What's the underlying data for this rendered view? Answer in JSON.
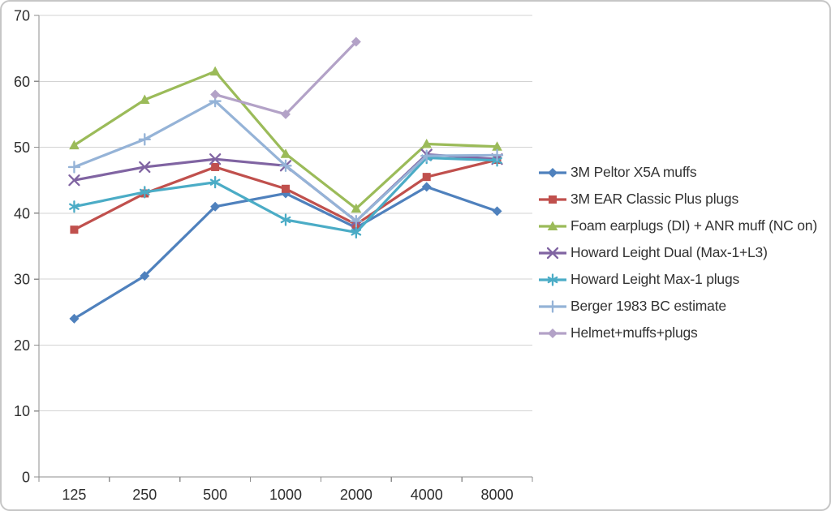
{
  "chart_data": {
    "type": "line",
    "title": "",
    "xlabel": "",
    "ylabel": "",
    "categories": [
      "125",
      "250",
      "500",
      "1000",
      "2000",
      "4000",
      "8000"
    ],
    "y_axis": {
      "min": 0,
      "max": 70,
      "step": 10,
      "tick_labels": [
        "0",
        "10",
        "20",
        "30",
        "40",
        "50",
        "60",
        "70"
      ]
    },
    "grid": true,
    "legend_position": "right",
    "series": [
      {
        "name": "3M Peltor X5A muffs",
        "color": "#4F81BD",
        "marker": "diamond",
        "values": [
          24,
          30.5,
          41,
          43,
          37.8,
          44,
          40.3
        ]
      },
      {
        "name": "3M EAR Classic Plus plugs",
        "color": "#C0504D",
        "marker": "square",
        "values": [
          37.5,
          43,
          47,
          43.7,
          38.3,
          45.5,
          48.1
        ]
      },
      {
        "name": "Foam earplugs (DI) + ANR muff (NC on)",
        "color": "#9BBB59",
        "marker": "triangle",
        "values": [
          50.3,
          57.2,
          61.5,
          49,
          40.7,
          50.5,
          50.1
        ]
      },
      {
        "name": "Howard Leight Dual (Max-1+L3)",
        "color": "#8064A2",
        "marker": "x",
        "values": [
          45,
          47,
          48.2,
          47.2,
          38.8,
          48.9,
          48.2
        ]
      },
      {
        "name": "Howard Leight Max-1 plugs",
        "color": "#4BACC6",
        "marker": "asterisk",
        "values": [
          41,
          43.2,
          44.7,
          39,
          37.1,
          48.4,
          48
        ]
      },
      {
        "name": "Berger 1983 BC estimate",
        "color": "#95B3D7",
        "marker": "plus",
        "values": [
          47,
          51.2,
          57,
          47.2,
          38.8,
          48.7,
          48.8
        ]
      },
      {
        "name": "Helmet+muffs+plugs",
        "color": "#B3A2C7",
        "marker": "diamond",
        "values": [
          null,
          null,
          58,
          55,
          66,
          null,
          null
        ]
      }
    ]
  },
  "colors": {
    "background": "#FFFFFF",
    "gridline": "#D3D3D3",
    "axis": "#8E8E8E",
    "tick_text": "#2E2E2E",
    "legend_text": "#333333",
    "frame_border": "#C6C6C6"
  }
}
